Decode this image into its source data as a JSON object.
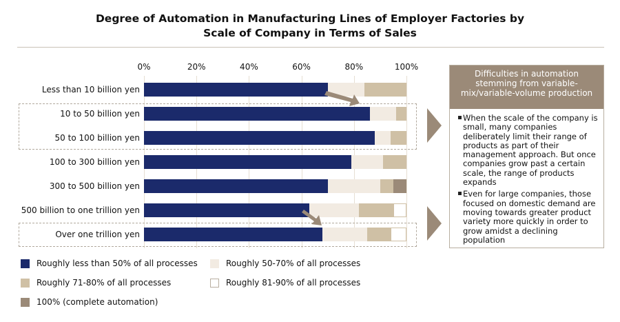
{
  "chart_data": {
    "type": "bar",
    "orientation": "horizontal",
    "stacked": true,
    "title": "Degree of Automation in Manufacturing Lines of Employer Factories by Scale of Company in Terms of Sales",
    "xlim": [
      0,
      100
    ],
    "xticks": [
      "0%",
      "20%",
      "40%",
      "60%",
      "80%",
      "100%"
    ],
    "grid": true,
    "categories": [
      "Less than 10 billion yen",
      "10 to 50 billion yen",
      "50 to 100 billion yen",
      "100 to 300 billion yen",
      "300 to 500 billion yen",
      "500 billion to one trillion yen",
      "Over one trillion yen"
    ],
    "series": [
      {
        "name": "Roughly less than 50% of all processes",
        "color": "#1b2a6b",
        "values": [
          70,
          86,
          88,
          79,
          70,
          63,
          68
        ]
      },
      {
        "name": "Roughly 50-70% of all processes",
        "color": "#f2ebe2",
        "values": [
          14,
          10,
          6,
          12,
          20,
          19,
          17
        ]
      },
      {
        "name": "Roughly 71-80% of all processes",
        "color": "#cfc0a5",
        "values": [
          16,
          4,
          6,
          9,
          5,
          13,
          9
        ]
      },
      {
        "name": "Roughly 81-90% of all processes",
        "color": "#ffffff",
        "values": [
          0,
          0,
          0,
          0,
          0,
          5,
          6
        ]
      },
      {
        "name": "100% (complete automation)",
        "color": "#9b8a78",
        "values": [
          0,
          0,
          0,
          0,
          5,
          0,
          0
        ]
      }
    ],
    "legend_placement": "bottom",
    "legend_order": [
      0,
      1,
      2,
      3,
      4
    ]
  },
  "callout": {
    "title": "Difficulties in automation stemming from variable-mix/variable-volume production",
    "bullets": [
      "When the scale of the company is small, many companies deliberately limit their range of products as part of their management approach. But once companies grow past a certain scale, the range of products expands",
      "Even for large companies, those focused on domestic demand are moving towards greater product variety more quickly in order to grow amidst a declining population"
    ]
  }
}
